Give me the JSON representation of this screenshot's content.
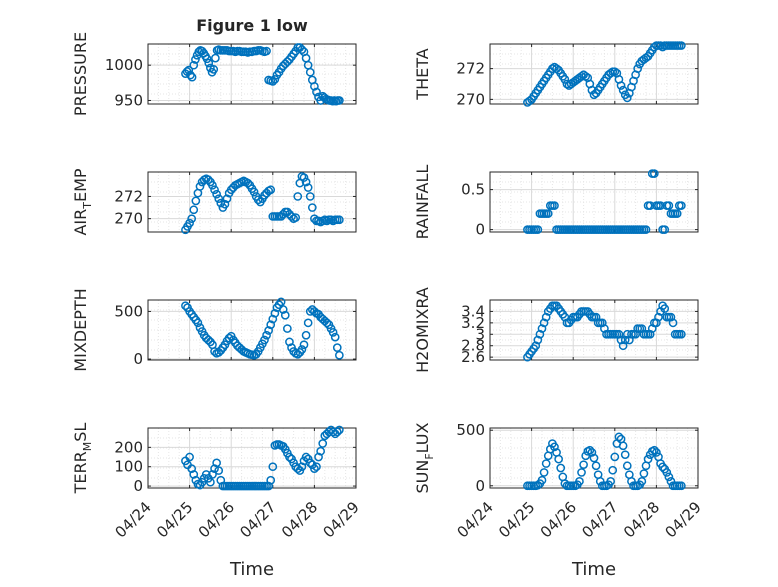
{
  "figure": {
    "title": "Figure 1 low",
    "x_tick_labels": [
      "04/24",
      "04/25",
      "04/26",
      "04/27",
      "04/28",
      "04/29"
    ],
    "x_label": "Time",
    "marker_color": "#0072BD"
  },
  "chart_data": [
    {
      "type": "scatter",
      "ylabel": "PRESSURE",
      "xlim": [
        0,
        5
      ],
      "ylim": [
        945,
        1030
      ],
      "yticks": [
        950,
        1000
      ],
      "ytick_labels": [
        "950",
        "1000"
      ],
      "x": [
        0.9,
        0.94,
        0.98,
        1.02,
        1.06,
        1.1,
        1.14,
        1.18,
        1.22,
        1.26,
        1.3,
        1.34,
        1.38,
        1.42,
        1.46,
        1.5,
        1.54,
        1.58,
        1.62,
        1.66,
        1.7,
        1.75,
        1.8,
        1.85,
        1.9,
        1.95,
        2.0,
        2.05,
        2.1,
        2.15,
        2.2,
        2.25,
        2.3,
        2.35,
        2.4,
        2.45,
        2.5,
        2.55,
        2.6,
        2.65,
        2.7,
        2.75,
        2.8,
        2.85,
        2.9,
        2.95,
        3.0,
        3.05,
        3.1,
        3.15,
        3.2,
        3.25,
        3.3,
        3.35,
        3.4,
        3.45,
        3.5,
        3.55,
        3.6,
        3.65,
        3.7,
        3.75,
        3.8,
        3.85,
        3.9,
        3.95,
        4.0,
        4.05,
        4.1,
        4.15,
        4.2,
        4.24,
        4.28,
        4.32,
        4.36,
        4.4,
        4.44,
        4.48,
        4.52,
        4.56,
        4.6
      ],
      "y": [
        988,
        991,
        993,
        986,
        983,
        1000,
        1008,
        1014,
        1019,
        1021,
        1020,
        1017,
        1013,
        1009,
        1003,
        996,
        990,
        994,
        1010,
        1021,
        1022,
        1021,
        1021,
        1021,
        1021,
        1020,
        1020,
        1020,
        1019,
        1020,
        1020,
        1019,
        1019,
        1019,
        1018,
        1019,
        1019,
        1020,
        1020,
        1021,
        1021,
        1020,
        1019,
        1020,
        979,
        978,
        977,
        980,
        986,
        990,
        995,
        999,
        1002,
        1005,
        1008,
        1012,
        1016,
        1020,
        1025,
        1025,
        1022,
        1019,
        1010,
        1000,
        990,
        979,
        970,
        962,
        955,
        950,
        956,
        954,
        952,
        951,
        950,
        950,
        949,
        950,
        949,
        950,
        950
      ]
    },
    {
      "type": "scatter",
      "ylabel": "THETA",
      "xlim": [
        0,
        5
      ],
      "ylim": [
        269.7,
        273.6
      ],
      "yticks": [
        270,
        272
      ],
      "ytick_labels": [
        "270",
        "272"
      ],
      "x": [
        0.9,
        0.95,
        1.0,
        1.05,
        1.1,
        1.15,
        1.2,
        1.25,
        1.3,
        1.35,
        1.4,
        1.45,
        1.5,
        1.55,
        1.6,
        1.65,
        1.7,
        1.75,
        1.8,
        1.85,
        1.9,
        1.95,
        2.0,
        2.05,
        2.1,
        2.15,
        2.2,
        2.25,
        2.3,
        2.35,
        2.4,
        2.45,
        2.5,
        2.55,
        2.6,
        2.65,
        2.7,
        2.75,
        2.8,
        2.85,
        2.9,
        2.95,
        3.0,
        3.05,
        3.1,
        3.15,
        3.2,
        3.25,
        3.3,
        3.35,
        3.4,
        3.45,
        3.5,
        3.55,
        3.6,
        3.65,
        3.7,
        3.75,
        3.8,
        3.85,
        3.9,
        3.95,
        4.0,
        4.05,
        4.1,
        4.15,
        4.2,
        4.25,
        4.3,
        4.35,
        4.4,
        4.45,
        4.5,
        4.55,
        4.6
      ],
      "y": [
        269.8,
        269.9,
        270.0,
        270.2,
        270.4,
        270.6,
        270.8,
        271.0,
        271.2,
        271.4,
        271.6,
        271.8,
        272.0,
        272.1,
        272.0,
        271.9,
        271.7,
        271.5,
        271.3,
        271.0,
        270.9,
        271.0,
        271.1,
        271.2,
        271.3,
        271.4,
        271.5,
        271.6,
        271.5,
        271.4,
        271.0,
        270.6,
        270.3,
        270.4,
        270.6,
        270.8,
        271.0,
        271.2,
        271.4,
        271.6,
        271.7,
        271.8,
        271.8,
        271.7,
        271.3,
        270.9,
        270.6,
        270.3,
        270.1,
        270.4,
        270.8,
        271.2,
        271.6,
        272.0,
        272.3,
        272.5,
        272.6,
        272.7,
        272.8,
        273.0,
        273.2,
        273.4,
        273.5,
        273.5,
        273.5,
        273.4,
        273.5,
        273.5,
        273.5,
        273.5,
        273.5,
        273.5,
        273.5,
        273.5,
        273.5
      ]
    },
    {
      "type": "scatter",
      "ylabel": "AIR_TEMP",
      "xlim": [
        0,
        5
      ],
      "ylim": [
        268.8,
        274.2
      ],
      "yticks": [
        270,
        272
      ],
      "ytick_labels": [
        "270",
        "272"
      ],
      "x": [
        0.9,
        0.95,
        1.0,
        1.05,
        1.1,
        1.15,
        1.2,
        1.25,
        1.3,
        1.35,
        1.4,
        1.45,
        1.5,
        1.55,
        1.6,
        1.65,
        1.7,
        1.75,
        1.8,
        1.85,
        1.9,
        1.95,
        2.0,
        2.05,
        2.1,
        2.15,
        2.2,
        2.25,
        2.3,
        2.35,
        2.4,
        2.45,
        2.5,
        2.55,
        2.6,
        2.65,
        2.7,
        2.75,
        2.8,
        2.85,
        2.9,
        2.95,
        3.0,
        3.05,
        3.1,
        3.15,
        3.2,
        3.25,
        3.3,
        3.35,
        3.4,
        3.45,
        3.5,
        3.55,
        3.6,
        3.65,
        3.7,
        3.75,
        3.8,
        3.85,
        3.9,
        3.95,
        4.0,
        4.05,
        4.1,
        4.15,
        4.2,
        4.25,
        4.3,
        4.35,
        4.4,
        4.45,
        4.5,
        4.55,
        4.6
      ],
      "y": [
        269.0,
        269.3,
        269.6,
        270.0,
        270.8,
        271.6,
        272.3,
        272.9,
        273.3,
        273.5,
        273.6,
        273.5,
        273.3,
        273.0,
        272.6,
        272.2,
        271.8,
        271.4,
        271.0,
        271.3,
        271.8,
        272.3,
        272.6,
        272.8,
        273.0,
        273.1,
        273.2,
        273.3,
        273.4,
        273.3,
        273.2,
        273.0,
        272.7,
        272.4,
        272.0,
        271.7,
        271.5,
        271.8,
        272.1,
        272.3,
        272.5,
        272.6,
        270.2,
        270.2,
        270.2,
        270.2,
        270.2,
        270.4,
        270.6,
        270.6,
        270.4,
        270.2,
        270.0,
        270.1,
        272.0,
        273.2,
        273.8,
        273.7,
        273.3,
        272.8,
        272.0,
        271.0,
        270.0,
        269.8,
        269.8,
        269.7,
        269.8,
        269.9,
        269.8,
        269.9,
        269.9,
        269.8,
        269.9,
        269.9,
        269.9
      ]
    },
    {
      "type": "scatter",
      "ylabel": "RAINFALL",
      "xlim": [
        0,
        5
      ],
      "ylim": [
        -0.03,
        0.72
      ],
      "yticks": [
        0,
        0.5
      ],
      "ytick_labels": [
        "0",
        "0.5"
      ],
      "x": [
        0.9,
        0.95,
        1.0,
        1.05,
        1.1,
        1.15,
        1.2,
        1.25,
        1.3,
        1.35,
        1.4,
        1.45,
        1.5,
        1.55,
        1.6,
        1.65,
        1.7,
        1.75,
        1.8,
        1.85,
        1.9,
        1.95,
        2.0,
        2.05,
        2.1,
        2.15,
        2.2,
        2.25,
        2.3,
        2.35,
        2.4,
        2.45,
        2.5,
        2.55,
        2.6,
        2.65,
        2.7,
        2.75,
        2.8,
        2.85,
        2.9,
        2.95,
        3.0,
        3.05,
        3.1,
        3.15,
        3.2,
        3.25,
        3.3,
        3.35,
        3.4,
        3.45,
        3.5,
        3.55,
        3.6,
        3.65,
        3.7,
        3.75,
        3.8,
        3.85,
        3.9,
        3.95,
        4.0,
        4.05,
        4.1,
        4.15,
        4.2,
        4.25,
        4.3,
        4.35,
        4.4,
        4.45,
        4.5,
        4.55,
        4.6
      ],
      "y": [
        0,
        0,
        0,
        0,
        0,
        0,
        0.2,
        0.2,
        0.2,
        0.2,
        0.2,
        0.3,
        0.3,
        0.3,
        0,
        0,
        0,
        0,
        0,
        0,
        0,
        0,
        0,
        0,
        0,
        0,
        0,
        0,
        0,
        0,
        0,
        0,
        0,
        0,
        0,
        0,
        0,
        0,
        0,
        0,
        0,
        0,
        0,
        0,
        0,
        0,
        0,
        0,
        0,
        0,
        0,
        0,
        0,
        0,
        0,
        0,
        0,
        0,
        0.3,
        0.3,
        0.7,
        0.7,
        0.3,
        0.3,
        0.3,
        0,
        0,
        0.3,
        0.3,
        0.2,
        0.2,
        0.2,
        0.2,
        0.3,
        0.3
      ]
    },
    {
      "type": "scatter",
      "ylabel": "MIXDEPTH",
      "xlim": [
        0,
        5
      ],
      "ylim": [
        -10,
        620
      ],
      "yticks": [
        0,
        500
      ],
      "ytick_labels": [
        "0",
        "500"
      ],
      "x": [
        0.9,
        0.95,
        1.0,
        1.05,
        1.1,
        1.15,
        1.2,
        1.25,
        1.3,
        1.35,
        1.4,
        1.45,
        1.5,
        1.55,
        1.6,
        1.65,
        1.7,
        1.75,
        1.8,
        1.85,
        1.9,
        1.95,
        2.0,
        2.05,
        2.1,
        2.15,
        2.2,
        2.25,
        2.3,
        2.35,
        2.4,
        2.45,
        2.5,
        2.55,
        2.6,
        2.65,
        2.7,
        2.75,
        2.8,
        2.85,
        2.9,
        2.95,
        3.0,
        3.05,
        3.1,
        3.15,
        3.2,
        3.25,
        3.3,
        3.35,
        3.4,
        3.45,
        3.5,
        3.55,
        3.6,
        3.65,
        3.7,
        3.75,
        3.8,
        3.85,
        3.9,
        3.95,
        4.0,
        4.05,
        4.1,
        4.15,
        4.2,
        4.25,
        4.3,
        4.35,
        4.4,
        4.45,
        4.5,
        4.55,
        4.6
      ],
      "y": [
        560,
        540,
        500,
        470,
        440,
        410,
        380,
        330,
        290,
        250,
        220,
        200,
        180,
        150,
        80,
        60,
        70,
        90,
        120,
        150,
        190,
        220,
        240,
        200,
        170,
        140,
        120,
        100,
        80,
        70,
        60,
        50,
        45,
        40,
        50,
        80,
        120,
        160,
        200,
        250,
        300,
        360,
        420,
        480,
        540,
        570,
        600,
        520,
        460,
        320,
        180,
        120,
        80,
        60,
        50,
        70,
        100,
        150,
        250,
        380,
        500,
        520,
        500,
        480,
        470,
        440,
        420,
        400,
        380,
        360,
        320,
        280,
        230,
        120,
        40
      ]
    },
    {
      "type": "scatter",
      "ylabel": "H2OMIXRA",
      "xlim": [
        0,
        5
      ],
      "ylim": [
        2.55,
        3.6
      ],
      "yticks": [
        2.6,
        2.8,
        3.0,
        3.2,
        3.4
      ],
      "ytick_labels": [
        "2.6",
        "2.8",
        "3",
        "3.2",
        "3.4"
      ],
      "x": [
        0.9,
        0.95,
        1.0,
        1.05,
        1.1,
        1.15,
        1.2,
        1.25,
        1.3,
        1.35,
        1.4,
        1.45,
        1.5,
        1.55,
        1.6,
        1.65,
        1.7,
        1.75,
        1.8,
        1.85,
        1.9,
        1.95,
        2.0,
        2.05,
        2.1,
        2.15,
        2.2,
        2.25,
        2.3,
        2.35,
        2.4,
        2.45,
        2.5,
        2.55,
        2.6,
        2.65,
        2.7,
        2.75,
        2.8,
        2.85,
        2.9,
        2.95,
        3.0,
        3.05,
        3.1,
        3.15,
        3.2,
        3.25,
        3.3,
        3.35,
        3.4,
        3.45,
        3.5,
        3.55,
        3.6,
        3.65,
        3.7,
        3.75,
        3.8,
        3.85,
        3.9,
        3.95,
        4.0,
        4.05,
        4.1,
        4.15,
        4.2,
        4.25,
        4.3,
        4.35,
        4.4,
        4.45,
        4.5,
        4.55,
        4.6
      ],
      "y": [
        2.6,
        2.65,
        2.7,
        2.75,
        2.8,
        2.9,
        3.0,
        3.1,
        3.2,
        3.3,
        3.4,
        3.45,
        3.5,
        3.5,
        3.5,
        3.45,
        3.4,
        3.35,
        3.3,
        3.2,
        3.2,
        3.25,
        3.3,
        3.3,
        3.3,
        3.35,
        3.4,
        3.4,
        3.4,
        3.4,
        3.35,
        3.3,
        3.3,
        3.3,
        3.2,
        3.2,
        3.2,
        3.1,
        3.0,
        3.0,
        3.0,
        3.0,
        3.0,
        3.0,
        3.0,
        2.9,
        2.8,
        2.9,
        3.0,
        2.9,
        3.0,
        3.0,
        3.0,
        3.1,
        3.1,
        3.1,
        3.0,
        3.0,
        3.0,
        3.0,
        3.1,
        3.2,
        3.2,
        3.3,
        3.4,
        3.5,
        3.45,
        3.3,
        3.3,
        3.3,
        3.2,
        3.0,
        3.0,
        3.0,
        3.0
      ]
    },
    {
      "type": "scatter",
      "ylabel": "TERR_MSL",
      "xlim": [
        0,
        5
      ],
      "ylim": [
        -10,
        300
      ],
      "yticks": [
        0,
        100,
        200
      ],
      "ytick_labels": [
        "0",
        "100",
        "200"
      ],
      "x": [
        0.9,
        0.95,
        1.0,
        1.05,
        1.1,
        1.15,
        1.2,
        1.25,
        1.3,
        1.35,
        1.4,
        1.45,
        1.5,
        1.55,
        1.6,
        1.65,
        1.7,
        1.75,
        1.8,
        1.85,
        1.9,
        1.95,
        2.0,
        2.05,
        2.1,
        2.15,
        2.2,
        2.25,
        2.3,
        2.35,
        2.4,
        2.45,
        2.5,
        2.55,
        2.6,
        2.65,
        2.7,
        2.75,
        2.8,
        2.85,
        2.9,
        2.95,
        3.0,
        3.05,
        3.1,
        3.15,
        3.2,
        3.25,
        3.3,
        3.35,
        3.4,
        3.45,
        3.5,
        3.55,
        3.6,
        3.65,
        3.7,
        3.75,
        3.8,
        3.85,
        3.9,
        3.95,
        4.0,
        4.05,
        4.1,
        4.15,
        4.2,
        4.25,
        4.3,
        4.35,
        4.4,
        4.45,
        4.5,
        4.55,
        4.6
      ],
      "y": [
        130,
        110,
        150,
        90,
        60,
        30,
        10,
        5,
        20,
        40,
        60,
        40,
        20,
        60,
        90,
        120,
        80,
        30,
        0,
        0,
        0,
        0,
        0,
        0,
        0,
        0,
        0,
        0,
        0,
        0,
        0,
        0,
        0,
        0,
        0,
        0,
        0,
        0,
        0,
        0,
        0,
        30,
        100,
        210,
        215,
        215,
        210,
        205,
        190,
        170,
        150,
        140,
        120,
        100,
        90,
        80,
        100,
        130,
        150,
        140,
        120,
        110,
        90,
        100,
        150,
        180,
        220,
        260,
        270,
        280,
        290,
        280,
        270,
        280,
        290
      ]
    },
    {
      "type": "scatter",
      "ylabel": "SUN_FLUX",
      "xlim": [
        0,
        5
      ],
      "ylim": [
        -20,
        520
      ],
      "yticks": [
        0,
        500
      ],
      "ytick_labels": [
        "0",
        "500"
      ],
      "x": [
        0.9,
        0.95,
        1.0,
        1.05,
        1.1,
        1.15,
        1.2,
        1.25,
        1.3,
        1.35,
        1.4,
        1.45,
        1.5,
        1.55,
        1.6,
        1.65,
        1.7,
        1.75,
        1.8,
        1.85,
        1.9,
        1.95,
        2.0,
        2.05,
        2.1,
        2.15,
        2.2,
        2.25,
        2.3,
        2.35,
        2.4,
        2.45,
        2.5,
        2.55,
        2.6,
        2.65,
        2.7,
        2.75,
        2.8,
        2.85,
        2.9,
        2.95,
        3.0,
        3.05,
        3.1,
        3.15,
        3.2,
        3.25,
        3.3,
        3.35,
        3.4,
        3.45,
        3.5,
        3.55,
        3.6,
        3.65,
        3.7,
        3.75,
        3.8,
        3.85,
        3.9,
        3.95,
        4.0,
        4.05,
        4.1,
        4.15,
        4.2,
        4.25,
        4.3,
        4.35,
        4.4,
        4.45,
        4.5,
        4.55,
        4.6
      ],
      "y": [
        0,
        0,
        0,
        0,
        0,
        5,
        20,
        50,
        120,
        200,
        270,
        330,
        380,
        350,
        300,
        240,
        160,
        80,
        20,
        0,
        0,
        0,
        0,
        0,
        10,
        40,
        120,
        190,
        270,
        310,
        320,
        300,
        250,
        180,
        100,
        40,
        0,
        0,
        0,
        10,
        40,
        140,
        260,
        380,
        440,
        420,
        360,
        280,
        180,
        100,
        40,
        0,
        0,
        0,
        10,
        40,
        110,
        180,
        240,
        280,
        310,
        320,
        300,
        260,
        200,
        170,
        150,
        120,
        80,
        40,
        0,
        0,
        0,
        0,
        0
      ]
    }
  ]
}
